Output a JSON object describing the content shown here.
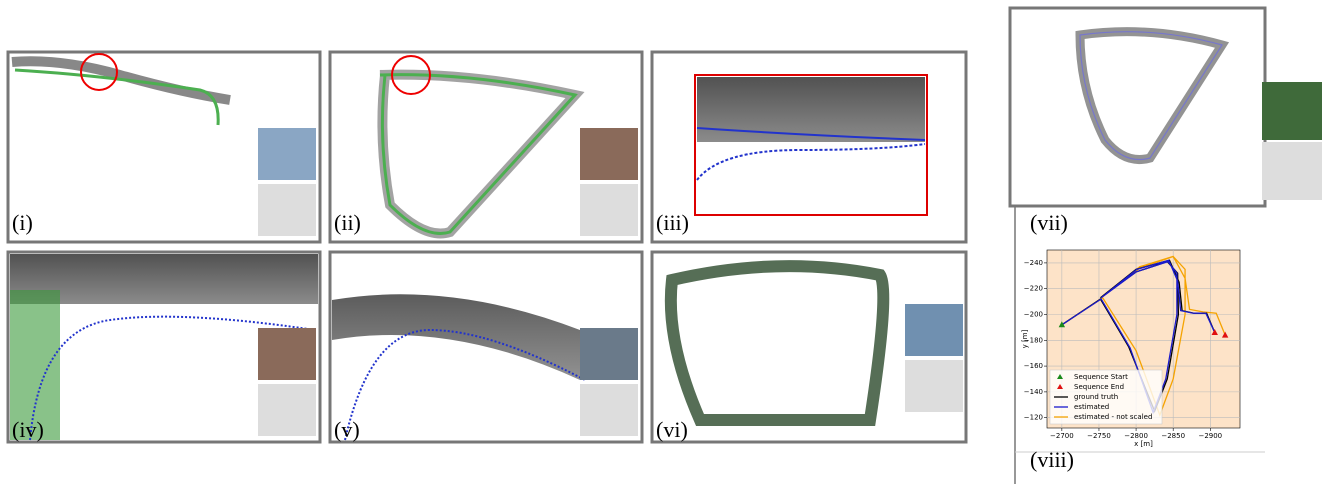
{
  "panels": [
    {
      "label": "(i)"
    },
    {
      "label": "(ii)"
    },
    {
      "label": "(iii)"
    },
    {
      "label": "(iv)"
    },
    {
      "label": "(v)"
    },
    {
      "label": "(vi)"
    },
    {
      "label": "(vii)"
    },
    {
      "label": "(viii)"
    }
  ],
  "chart_data": {
    "type": "line",
    "xlabel": "x [m]",
    "ylabel": "y [m]",
    "xlim": [
      -2680,
      -2940
    ],
    "ylim": [
      -112,
      -250
    ],
    "xticks": [
      {
        "value": -2700,
        "label": "−2700"
      },
      {
        "value": -2750,
        "label": "−2750"
      },
      {
        "value": -2800,
        "label": "−2800"
      },
      {
        "value": -2850,
        "label": "−2850"
      },
      {
        "value": -2900,
        "label": "−2900"
      }
    ],
    "yticks": [
      {
        "value": -240,
        "label": "−240"
      },
      {
        "value": -220,
        "label": "−220"
      },
      {
        "value": -200,
        "label": "−200"
      },
      {
        "value": -180,
        "label": "−180"
      },
      {
        "value": -160,
        "label": "−160"
      },
      {
        "value": -140,
        "label": "−140"
      },
      {
        "value": -120,
        "label": "−120"
      }
    ],
    "grid": true,
    "background": "#fde3c8",
    "markers": [
      {
        "name": "Sequence Start",
        "color": "#1a8a1a",
        "x": [
          -2700
        ],
        "values": [
          -192
        ]
      },
      {
        "name": "Sequence End",
        "color": "#e01010",
        "x": [
          -2906,
          -2920
        ],
        "values": [
          -186,
          -184
        ]
      }
    ],
    "series": [
      {
        "name": "ground truth",
        "color": "#000000",
        "x": [
          -2700,
          -2752,
          -2790,
          -2825,
          -2842,
          -2857,
          -2856,
          -2842,
          -2800,
          -2752,
          -2800,
          -2845,
          -2858,
          -2862,
          -2878,
          -2895,
          -2906
        ],
        "values": [
          -192,
          -212,
          -175,
          -125,
          -150,
          -200,
          -232,
          -241,
          -233,
          -213,
          -235,
          -242,
          -225,
          -203,
          -201,
          -201,
          -186
        ]
      },
      {
        "name": "estimated",
        "color": "#1a1acc",
        "x": [
          -2700,
          -2753,
          -2792,
          -2823,
          -2840,
          -2855,
          -2855,
          -2843,
          -2800,
          -2753,
          -2801,
          -2844,
          -2856,
          -2860,
          -2877,
          -2894,
          -2906
        ],
        "values": [
          -192,
          -212,
          -174,
          -124,
          -150,
          -200,
          -232,
          -241,
          -233,
          -213,
          -235,
          -242,
          -226,
          -203,
          -201,
          -201,
          -186
        ]
      },
      {
        "name": "estimated - not scaled",
        "color": "#f5a300",
        "x": [
          -2700,
          -2755,
          -2800,
          -2832,
          -2850,
          -2866,
          -2866,
          -2850,
          -2805,
          -2755,
          -2805,
          -2850,
          -2866,
          -2872,
          -2890,
          -2908,
          -2920
        ],
        "values": [
          -192,
          -213,
          -172,
          -122,
          -150,
          -200,
          -235,
          -245,
          -236,
          -214,
          -237,
          -245,
          -228,
          -204,
          -202,
          -201,
          -184
        ]
      }
    ]
  }
}
